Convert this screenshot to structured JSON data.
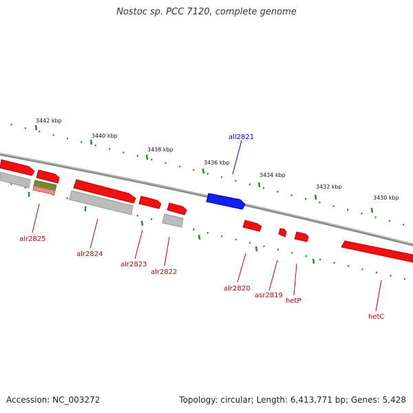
{
  "title": "Nostoc sp. PCC 7120, complete genome",
  "footer": {
    "accession": "Accession: NC_003272",
    "summary": "Topology: circular; Length: 6,413,771 bp; Genes: 5,428"
  },
  "scale_labels": [
    "3442 kbp",
    "3440 kbp",
    "3438 kbp",
    "3436 kbp",
    "3434 kbp",
    "3432 kbp",
    "3430 kbp"
  ],
  "gene_labels": [
    "alr2825",
    "alr2824",
    "alr2823",
    "alr2822",
    "all2821",
    "alr2820",
    "asr2819",
    "hetP",
    "hetC"
  ],
  "colors": {
    "forward_gene": "#ee1111",
    "reverse_gene": "#1122ee",
    "forward_label": "#cc0000",
    "reverse_label": "#0000cc",
    "backbone": "#888888",
    "tick": "#2a8a2a",
    "grey_feature": "#bbbbbb",
    "olive_feature": "#6f8f2f",
    "pink_feature": "#f08a8a"
  }
}
